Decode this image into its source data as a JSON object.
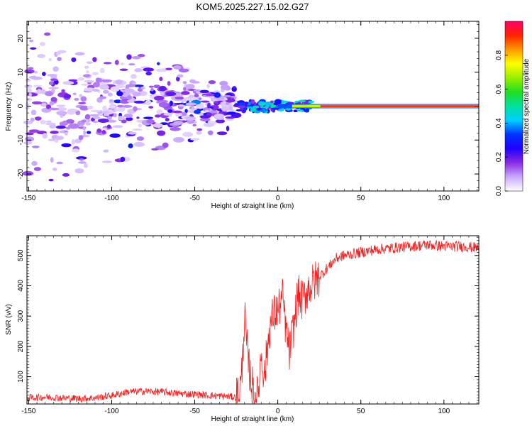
{
  "figure_title": "KOM5.2025.227.15.02.G27",
  "chart_data": [
    {
      "type": "heatmap",
      "name": "spectrogram",
      "xlabel": "Height of straight line (km)",
      "ylabel": "Frequency (Hz)",
      "xlim": [
        -151,
        121
      ],
      "ylim": [
        -25,
        25
      ],
      "xticks": [
        -150,
        -100,
        -50,
        0,
        50,
        100
      ],
      "yticks": [
        -20,
        -10,
        0,
        10,
        20
      ],
      "colorbar": {
        "label": "Normalized spectral amplitude",
        "range": [
          0,
          1
        ],
        "ticks": [
          "0.0",
          "0.2",
          "0.4",
          "0.6",
          "0.8"
        ],
        "colors": [
          "#ffffff",
          "#c9a8ff",
          "#8a2be2",
          "#2200ff",
          "#0033ff",
          "#00d0ff",
          "#00e0a0",
          "#22dd22",
          "#99ee00",
          "#ffff00",
          "#ff9900",
          "#ff2200",
          "#ff0066"
        ]
      },
      "features": [
        {
          "segment": "tone near 0 Hz",
          "x_range": [
            0,
            121
          ],
          "frequency_hz": 0,
          "amplitude": "0.8-1.0"
        },
        {
          "segment": "tone onset",
          "x_range": [
            -25,
            20
          ],
          "frequency_hz": [
            -1,
            1
          ],
          "amplitude": "0.2-0.6"
        },
        {
          "segment": "scattered noise",
          "x_range": [
            -151,
            -25
          ],
          "frequency_hz": [
            -25,
            25
          ],
          "amplitude": "0.05-0.25"
        }
      ]
    },
    {
      "type": "line",
      "name": "snr",
      "xlabel": "Height of straight line (km)",
      "ylabel": "SNR (v/v)",
      "xlim": [
        -151,
        121
      ],
      "ylim": [
        10,
        565
      ],
      "xticks": [
        -150,
        -100,
        -50,
        0,
        50,
        100
      ],
      "yticks": [
        100,
        200,
        300,
        400,
        500
      ],
      "series": [
        {
          "name": "SNR",
          "color": "#ee2222",
          "x": [
            -151,
            -140,
            -130,
            -120,
            -110,
            -100,
            -90,
            -80,
            -70,
            -60,
            -50,
            -40,
            -30,
            -25,
            -22,
            -20,
            -18,
            -15,
            -12,
            -10,
            -8,
            -5,
            -3,
            0,
            3,
            5,
            7,
            10,
            12,
            15,
            18,
            20,
            25,
            30,
            35,
            40,
            50,
            60,
            70,
            80,
            90,
            100,
            110,
            121
          ],
          "y": [
            30,
            33,
            30,
            28,
            30,
            38,
            50,
            52,
            50,
            45,
            42,
            38,
            35,
            32,
            80,
            300,
            150,
            60,
            30,
            180,
            100,
            260,
            300,
            320,
            360,
            250,
            180,
            280,
            370,
            350,
            390,
            400,
            430,
            460,
            490,
            500,
            510,
            520,
            525,
            530,
            535,
            530,
            530,
            525
          ]
        }
      ]
    }
  ]
}
